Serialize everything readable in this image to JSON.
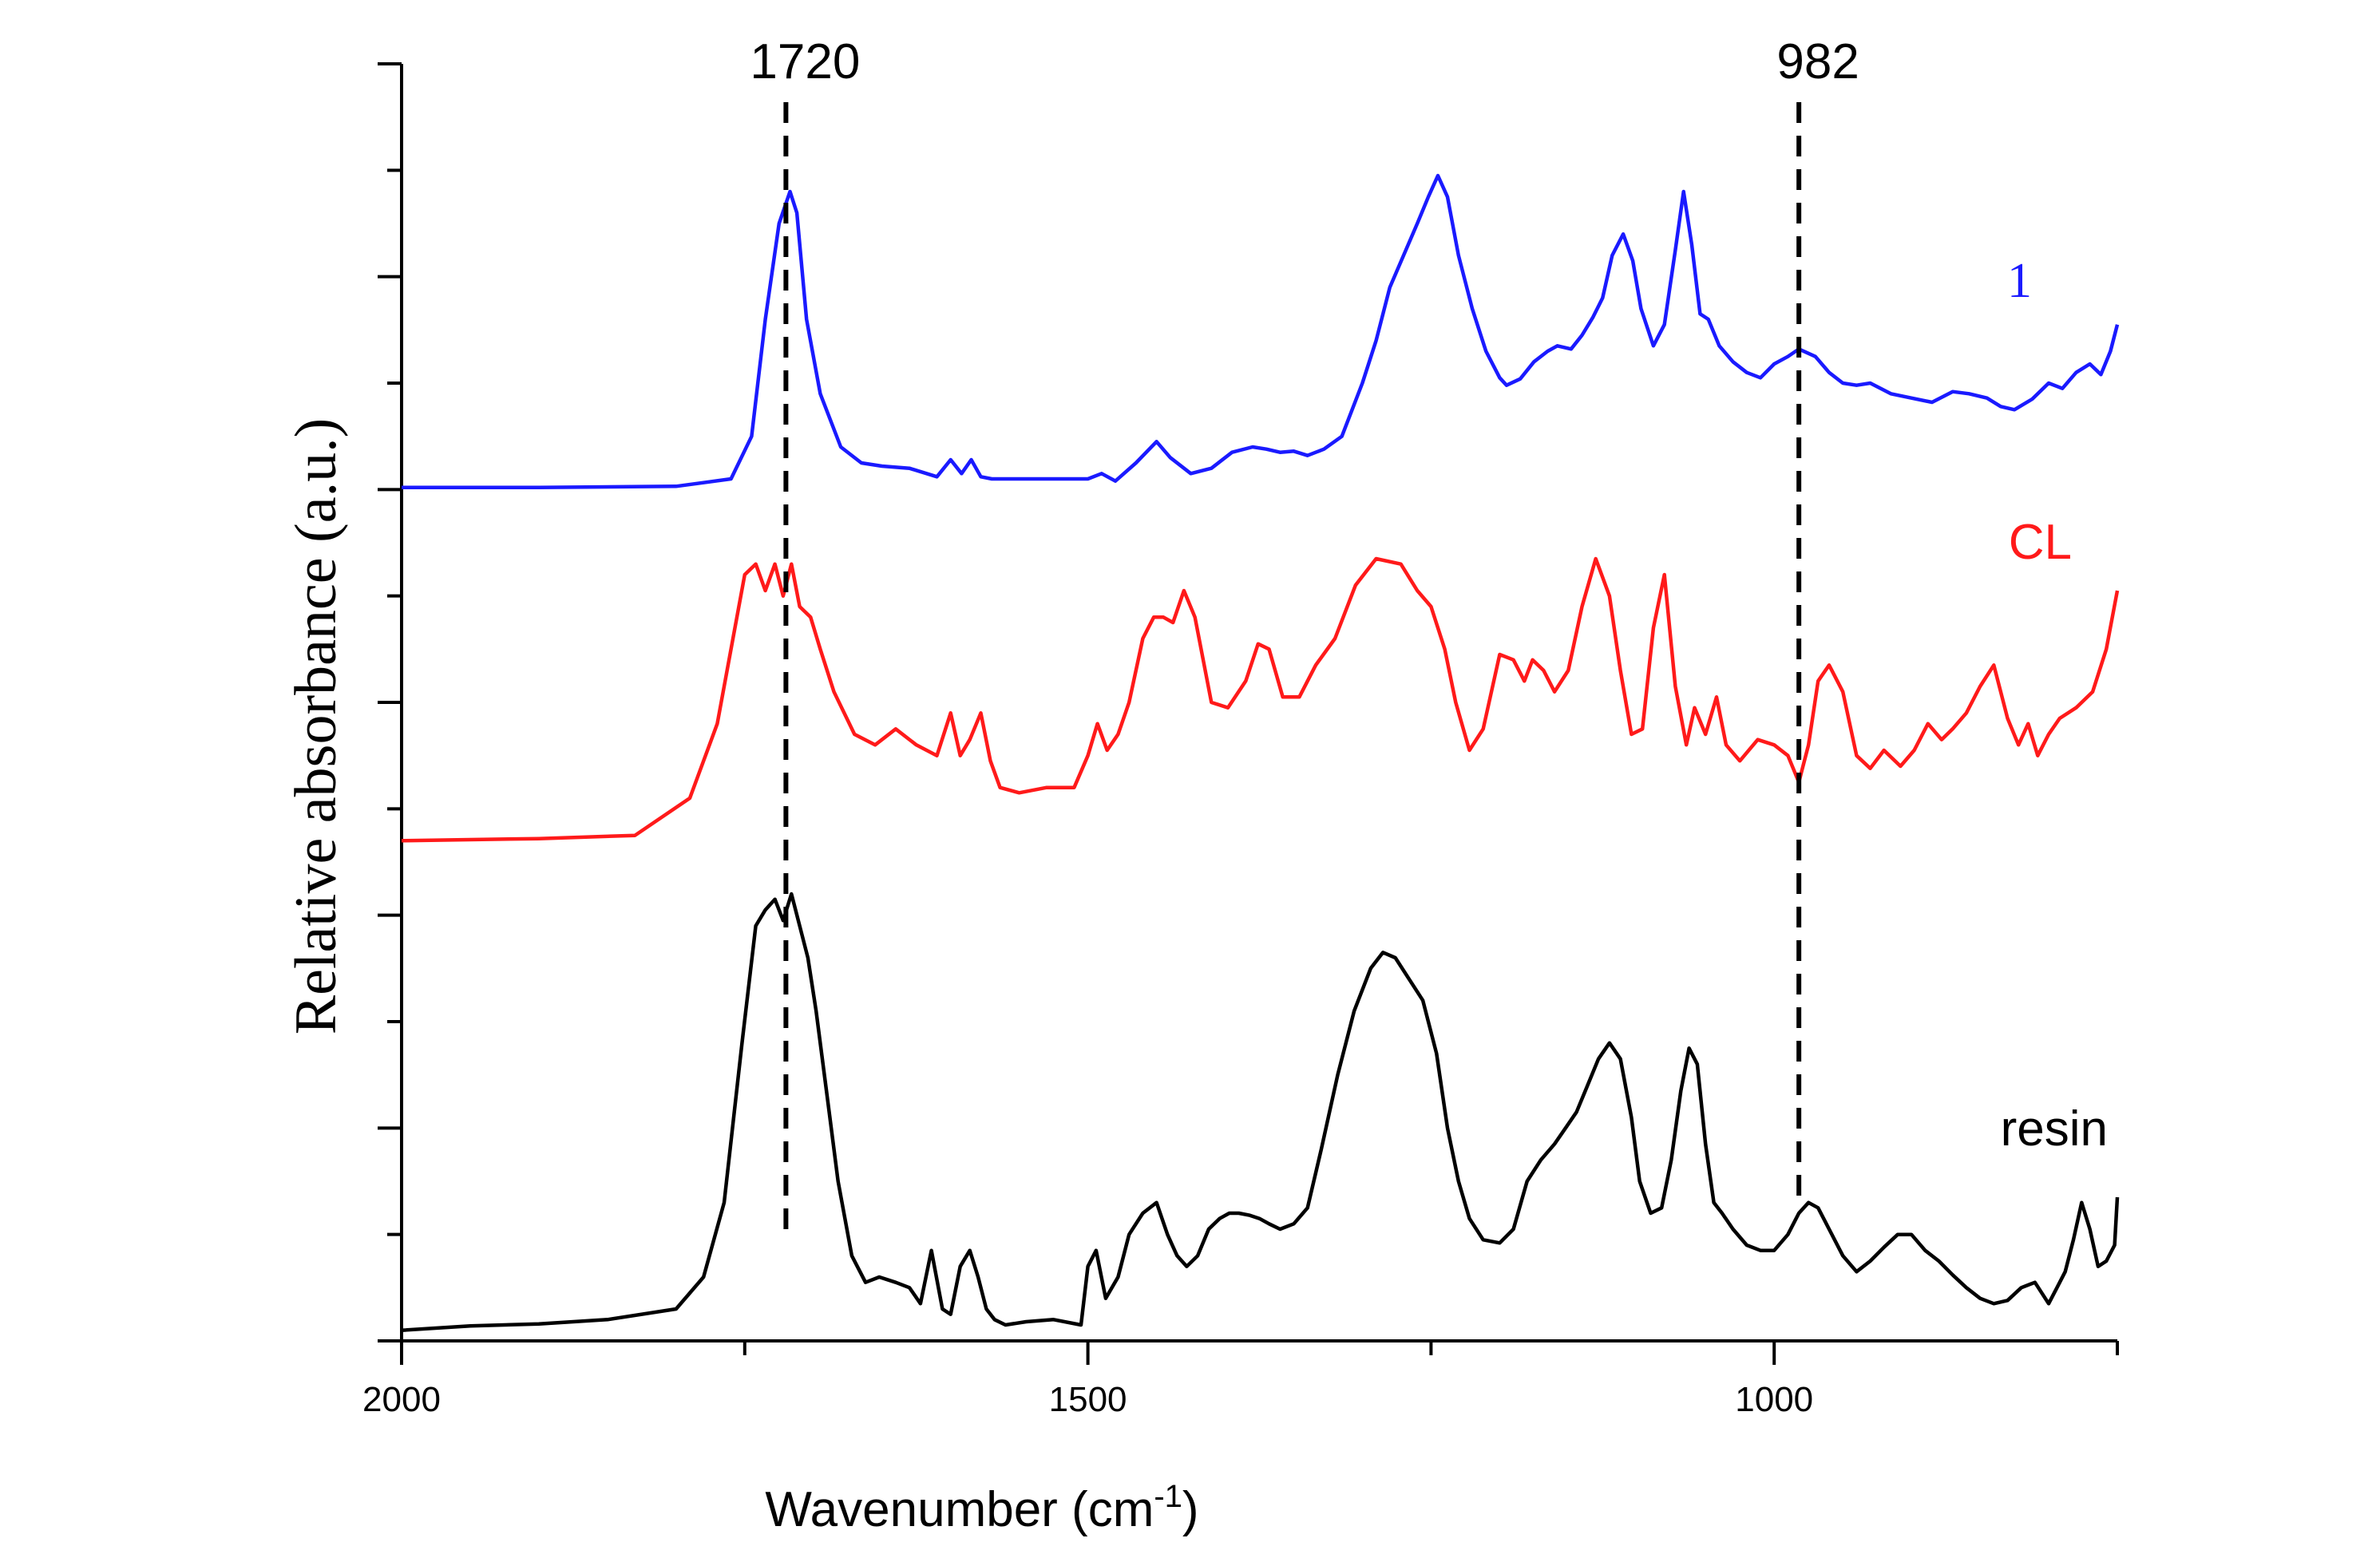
{
  "chart_data": {
    "type": "line",
    "title": "",
    "xlabel": "Wavenumber (cm",
    "xlabel_sup": "-1",
    "xlabel_end": ")",
    "ylabel": "Relative absorbance (a.u.)",
    "xlim": [
      2000,
      750
    ],
    "ylim": [
      0,
      12
    ],
    "x_ticks": [
      2000,
      1500,
      1000
    ],
    "x_tick_labels": [
      "2000",
      "1500",
      "1000"
    ],
    "annotations": [
      {
        "label": "1720",
        "x": 1720
      },
      {
        "label": "982",
        "x": 982
      }
    ],
    "series": [
      {
        "name": "1",
        "color": "#1a1aff",
        "label_font": "serif",
        "x": [
          2000,
          1900,
          1800,
          1760,
          1745,
          1735,
          1725,
          1717,
          1712,
          1705,
          1695,
          1680,
          1665,
          1650,
          1630,
          1610,
          1600,
          1592,
          1585,
          1578,
          1570,
          1555,
          1530,
          1500,
          1490,
          1480,
          1465,
          1450,
          1440,
          1425,
          1410,
          1395,
          1380,
          1370,
          1360,
          1350,
          1340,
          1328,
          1315,
          1300,
          1290,
          1280,
          1270,
          1260,
          1252,
          1245,
          1238,
          1230,
          1220,
          1210,
          1200,
          1195,
          1185,
          1175,
          1165,
          1158,
          1148,
          1140,
          1132,
          1125,
          1118,
          1110,
          1103,
          1097,
          1088,
          1080,
          1072,
          1066,
          1060,
          1054,
          1048,
          1040,
          1030,
          1020,
          1010,
          1000,
          990,
          982,
          970,
          960,
          950,
          940,
          930,
          915,
          900,
          885,
          870,
          858,
          845,
          835,
          825,
          812,
          800,
          790,
          780,
          770,
          762,
          755,
          750
        ],
        "values": [
          8.02,
          8.02,
          8.03,
          8.1,
          8.5,
          9.6,
          10.5,
          10.8,
          10.6,
          9.6,
          8.9,
          8.4,
          8.25,
          8.22,
          8.2,
          8.12,
          8.28,
          8.15,
          8.28,
          8.12,
          8.1,
          8.1,
          8.1,
          8.1,
          8.15,
          8.08,
          8.25,
          8.45,
          8.3,
          8.15,
          8.2,
          8.35,
          8.4,
          8.38,
          8.35,
          8.36,
          8.32,
          8.38,
          8.5,
          9.0,
          9.4,
          9.9,
          10.2,
          10.5,
          10.75,
          10.95,
          10.75,
          10.2,
          9.7,
          9.3,
          9.05,
          8.98,
          9.04,
          9.2,
          9.3,
          9.35,
          9.32,
          9.45,
          9.62,
          9.8,
          10.2,
          10.4,
          10.15,
          9.7,
          9.35,
          9.55,
          10.25,
          10.8,
          10.3,
          9.65,
          9.6,
          9.35,
          9.2,
          9.1,
          9.05,
          9.18,
          9.25,
          9.32,
          9.25,
          9.1,
          9.0,
          8.98,
          9.0,
          8.9,
          8.86,
          8.82,
          8.92,
          8.9,
          8.86,
          8.78,
          8.75,
          8.85,
          9.0,
          8.95,
          9.1,
          9.18,
          9.08,
          9.3,
          9.55
        ]
      },
      {
        "name": "CL",
        "color": "#ff1a1a",
        "label_font": "sans",
        "x": [
          2000,
          1900,
          1830,
          1790,
          1770,
          1760,
          1750,
          1742,
          1735,
          1728,
          1722,
          1716,
          1710,
          1702,
          1695,
          1685,
          1670,
          1655,
          1640,
          1625,
          1610,
          1600,
          1593,
          1586,
          1578,
          1571,
          1564,
          1550,
          1530,
          1510,
          1500,
          1493,
          1486,
          1478,
          1470,
          1460,
          1452,
          1445,
          1438,
          1430,
          1422,
          1410,
          1398,
          1385,
          1376,
          1368,
          1358,
          1346,
          1334,
          1320,
          1305,
          1290,
          1272,
          1260,
          1250,
          1240,
          1232,
          1222,
          1212,
          1200,
          1190,
          1182,
          1176,
          1168,
          1160,
          1150,
          1140,
          1130,
          1120,
          1112,
          1104,
          1096,
          1088,
          1080,
          1072,
          1064,
          1058,
          1050,
          1042,
          1035,
          1025,
          1012,
          1000,
          990,
          982,
          975,
          968,
          960,
          950,
          940,
          930,
          920,
          908,
          898,
          888,
          878,
          870,
          860,
          850,
          840,
          830,
          822,
          815,
          808,
          800,
          792,
          780,
          768,
          758,
          750
        ],
        "values": [
          4.7,
          4.72,
          4.75,
          5.1,
          5.8,
          6.5,
          7.2,
          7.3,
          7.05,
          7.3,
          7.0,
          7.3,
          6.9,
          6.8,
          6.5,
          6.1,
          5.7,
          5.6,
          5.75,
          5.6,
          5.5,
          5.9,
          5.5,
          5.65,
          5.9,
          5.45,
          5.2,
          5.15,
          5.2,
          5.2,
          5.5,
          5.8,
          5.55,
          5.7,
          6.0,
          6.6,
          6.8,
          6.8,
          6.75,
          7.05,
          6.8,
          6.0,
          5.95,
          6.2,
          6.55,
          6.5,
          6.05,
          6.05,
          6.35,
          6.6,
          7.1,
          7.35,
          7.3,
          7.05,
          6.9,
          6.5,
          6.0,
          5.55,
          5.75,
          6.45,
          6.4,
          6.2,
          6.4,
          6.3,
          6.1,
          6.3,
          6.9,
          7.35,
          7.0,
          6.3,
          5.7,
          5.75,
          6.7,
          7.2,
          6.15,
          5.6,
          5.95,
          5.7,
          6.05,
          5.6,
          5.45,
          5.65,
          5.6,
          5.5,
          5.25,
          5.6,
          6.2,
          6.35,
          6.1,
          5.5,
          5.38,
          5.55,
          5.4,
          5.55,
          5.8,
          5.65,
          5.75,
          5.9,
          6.15,
          6.35,
          5.85,
          5.6,
          5.8,
          5.5,
          5.7,
          5.85,
          5.95,
          6.1,
          6.5,
          7.05
        ]
      },
      {
        "name": "resin",
        "color": "#000000",
        "label_font": "sans",
        "x": [
          2000,
          1950,
          1900,
          1850,
          1800,
          1780,
          1765,
          1752,
          1742,
          1735,
          1728,
          1722,
          1716,
          1710,
          1704,
          1698,
          1690,
          1682,
          1672,
          1662,
          1652,
          1640,
          1630,
          1622,
          1614,
          1606,
          1600,
          1593,
          1586,
          1580,
          1574,
          1568,
          1560,
          1545,
          1525,
          1505,
          1500,
          1494,
          1487,
          1478,
          1470,
          1460,
          1450,
          1442,
          1435,
          1428,
          1420,
          1412,
          1404,
          1397,
          1390,
          1382,
          1375,
          1368,
          1360,
          1350,
          1340,
          1330,
          1318,
          1306,
          1294,
          1285,
          1276,
          1266,
          1256,
          1246,
          1238,
          1230,
          1222,
          1212,
          1200,
          1190,
          1180,
          1170,
          1160,
          1152,
          1144,
          1136,
          1128,
          1120,
          1112,
          1104,
          1098,
          1090,
          1082,
          1075,
          1068,
          1062,
          1056,
          1050,
          1044,
          1038,
          1030,
          1020,
          1010,
          1000,
          990,
          982,
          975,
          968,
          960,
          950,
          940,
          930,
          920,
          910,
          900,
          890,
          880,
          870,
          860,
          850,
          840,
          830,
          820,
          810,
          800,
          794,
          788,
          782,
          776,
          770,
          764,
          758,
          752,
          750
        ],
        "values": [
          0.1,
          0.14,
          0.16,
          0.2,
          0.3,
          0.6,
          1.3,
          2.8,
          3.9,
          4.05,
          4.15,
          3.95,
          4.2,
          3.9,
          3.6,
          3.1,
          2.3,
          1.5,
          0.8,
          0.55,
          0.6,
          0.55,
          0.5,
          0.35,
          0.85,
          0.3,
          0.25,
          0.7,
          0.85,
          0.6,
          0.3,
          0.2,
          0.15,
          0.18,
          0.2,
          0.15,
          0.7,
          0.85,
          0.4,
          0.6,
          1.0,
          1.2,
          1.3,
          1.0,
          0.8,
          0.7,
          0.8,
          1.05,
          1.15,
          1.2,
          1.2,
          1.18,
          1.15,
          1.1,
          1.05,
          1.1,
          1.25,
          1.8,
          2.5,
          3.1,
          3.5,
          3.65,
          3.6,
          3.4,
          3.2,
          2.7,
          2.0,
          1.5,
          1.15,
          0.95,
          0.92,
          1.05,
          1.5,
          1.7,
          1.85,
          2.0,
          2.15,
          2.4,
          2.65,
          2.8,
          2.65,
          2.1,
          1.5,
          1.2,
          1.25,
          1.7,
          2.35,
          2.75,
          2.6,
          1.85,
          1.3,
          1.2,
          1.05,
          0.9,
          0.85,
          0.85,
          1.0,
          1.2,
          1.3,
          1.25,
          1.05,
          0.8,
          0.65,
          0.75,
          0.88,
          1.0,
          1.0,
          0.85,
          0.75,
          0.62,
          0.5,
          0.4,
          0.35,
          0.38,
          0.5,
          0.55,
          0.35,
          0.5,
          0.65,
          0.95,
          1.3,
          1.05,
          0.7,
          0.75,
          0.9,
          1.35
        ]
      }
    ]
  }
}
